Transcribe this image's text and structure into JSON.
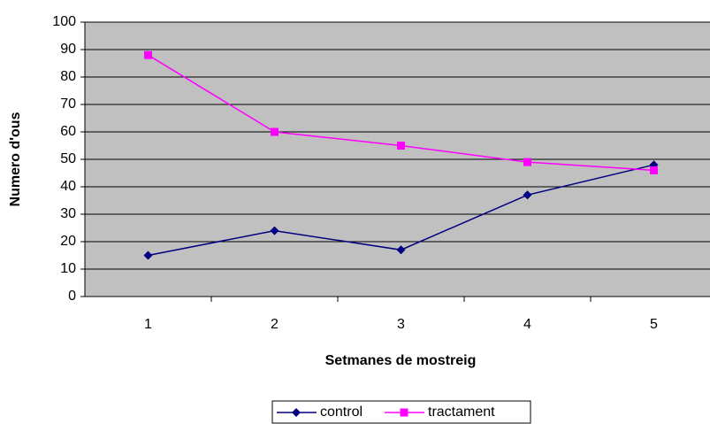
{
  "chart_data": {
    "type": "line",
    "xlabel": "Setmanes de mostreig",
    "ylabel": "Numero d'ous",
    "categories": [
      1,
      2,
      3,
      4,
      5
    ],
    "series": [
      {
        "name": "control",
        "color": "#000080",
        "marker": "diamond",
        "values": [
          15,
          24,
          17,
          37,
          48
        ]
      },
      {
        "name": "tractament",
        "color": "#FF00FF",
        "marker": "square",
        "values": [
          88,
          60,
          55,
          49,
          46
        ]
      }
    ],
    "ylim": [
      0,
      100
    ],
    "yticks": [
      0,
      10,
      20,
      30,
      40,
      50,
      60,
      70,
      80,
      90,
      100
    ],
    "grid": true,
    "legend": "bottom"
  }
}
